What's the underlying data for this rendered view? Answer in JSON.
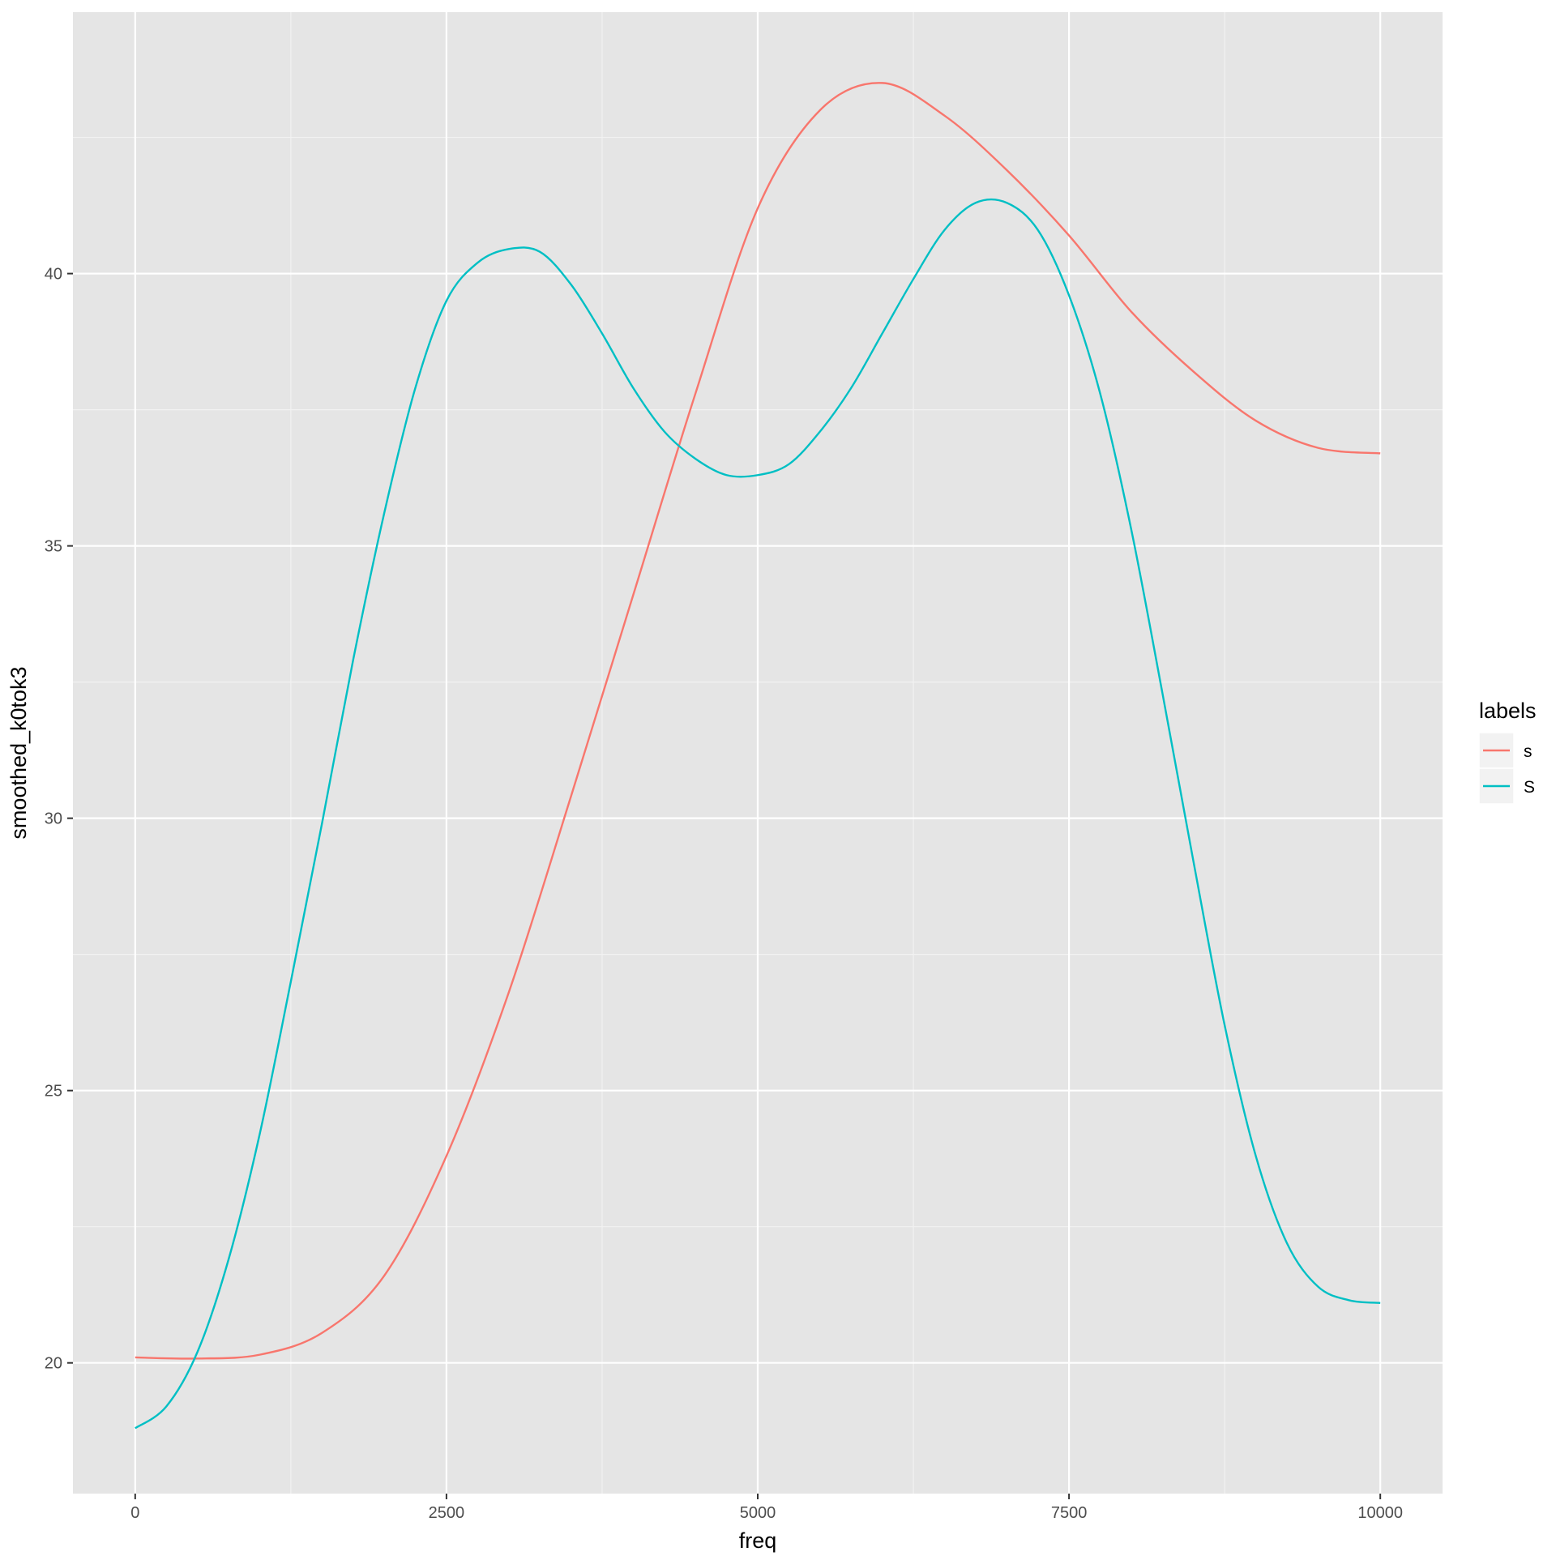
{
  "chart_data": {
    "type": "line",
    "xlabel": "freq",
    "ylabel": "smoothed_k0tok3",
    "xlim": [
      -500,
      10500
    ],
    "ylim": [
      17.6,
      44.8
    ],
    "x_ticks": [
      0,
      2500,
      5000,
      7500,
      10000
    ],
    "x_tick_labels": [
      "0",
      "2500",
      "5000",
      "7500",
      "10000"
    ],
    "y_ticks": [
      20,
      25,
      30,
      35,
      40
    ],
    "y_tick_labels": [
      "20",
      "25",
      "30",
      "35",
      "40"
    ],
    "grid": true,
    "legend": {
      "title": "labels",
      "placement": "right"
    },
    "series": [
      {
        "name": "s",
        "color": "#F8766D",
        "points": [
          [
            0,
            20.1
          ],
          [
            500,
            20.08
          ],
          [
            1000,
            20.15
          ],
          [
            1500,
            20.55
          ],
          [
            2000,
            21.6
          ],
          [
            2500,
            23.8
          ],
          [
            3000,
            26.8
          ],
          [
            3500,
            30.4
          ],
          [
            4000,
            34.1
          ],
          [
            4500,
            37.8
          ],
          [
            5000,
            41.2
          ],
          [
            5500,
            43.0
          ],
          [
            6000,
            43.5
          ],
          [
            6500,
            42.9
          ],
          [
            7000,
            41.9
          ],
          [
            7500,
            40.7
          ],
          [
            8000,
            39.3
          ],
          [
            8500,
            38.2
          ],
          [
            9000,
            37.3
          ],
          [
            9500,
            36.8
          ],
          [
            10000,
            36.7
          ]
        ]
      },
      {
        "name": "S",
        "color": "#00BFC4",
        "points": [
          [
            0,
            18.8
          ],
          [
            250,
            19.2
          ],
          [
            500,
            20.2
          ],
          [
            750,
            21.9
          ],
          [
            1000,
            24.2
          ],
          [
            1250,
            27.0
          ],
          [
            1500,
            29.9
          ],
          [
            1750,
            32.9
          ],
          [
            2000,
            35.6
          ],
          [
            2250,
            37.9
          ],
          [
            2500,
            39.5
          ],
          [
            2750,
            40.2
          ],
          [
            3000,
            40.45
          ],
          [
            3250,
            40.4
          ],
          [
            3500,
            39.8
          ],
          [
            3750,
            38.9
          ],
          [
            4000,
            37.9
          ],
          [
            4250,
            37.1
          ],
          [
            4500,
            36.6
          ],
          [
            4750,
            36.3
          ],
          [
            5000,
            36.3
          ],
          [
            5250,
            36.5
          ],
          [
            5500,
            37.1
          ],
          [
            5750,
            37.9
          ],
          [
            6000,
            38.9
          ],
          [
            6250,
            39.9
          ],
          [
            6500,
            40.8
          ],
          [
            6750,
            41.3
          ],
          [
            7000,
            41.3
          ],
          [
            7250,
            40.8
          ],
          [
            7500,
            39.6
          ],
          [
            7750,
            37.8
          ],
          [
            8000,
            35.3
          ],
          [
            8250,
            32.3
          ],
          [
            8500,
            29.2
          ],
          [
            8750,
            26.2
          ],
          [
            9000,
            23.8
          ],
          [
            9250,
            22.2
          ],
          [
            9500,
            21.4
          ],
          [
            9750,
            21.15
          ],
          [
            10000,
            21.1
          ]
        ]
      }
    ]
  }
}
